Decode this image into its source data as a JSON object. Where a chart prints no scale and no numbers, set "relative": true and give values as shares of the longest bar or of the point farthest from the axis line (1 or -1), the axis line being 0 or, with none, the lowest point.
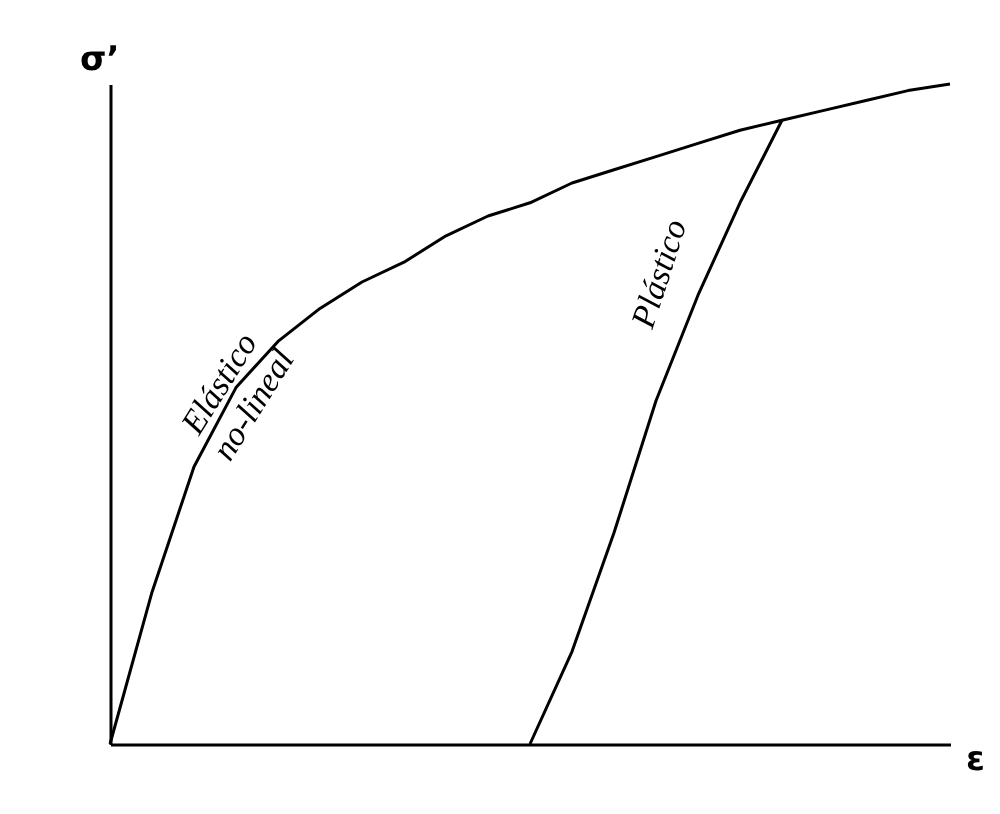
{
  "chart_data": {
    "type": "line",
    "relative": true,
    "xlabel": "ε",
    "ylabel": "σ’",
    "line_style": "solid",
    "marker": "none",
    "grid": false,
    "categories": [
      null,
      null,
      null,
      null,
      null,
      null,
      null,
      null,
      null,
      null,
      null,
      null,
      null,
      null,
      null,
      null,
      null,
      null,
      null,
      null,
      null
    ],
    "series": [
      {
        "color": "#000000",
        "values": [
          0,
          0.23,
          0.42,
          0.54,
          0.61,
          0.66,
          0.7,
          0.73,
          0.77,
          0.8,
          0.82,
          0.85,
          0.87,
          0.89,
          0.91,
          0.93,
          0.945,
          0.96,
          0.975,
          0.99,
          1.0
        ]
      },
      {
        "color": "#000000",
        "values": [
          null,
          null,
          null,
          null,
          null,
          null,
          null,
          null,
          null,
          null,
          0,
          0.14,
          0.32,
          0.52,
          0.68,
          0.82,
          0.945,
          null,
          null,
          null,
          null
        ]
      }
    ],
    "annotations": [
      "Elástico\nno-lineal",
      "Plástico"
    ]
  }
}
